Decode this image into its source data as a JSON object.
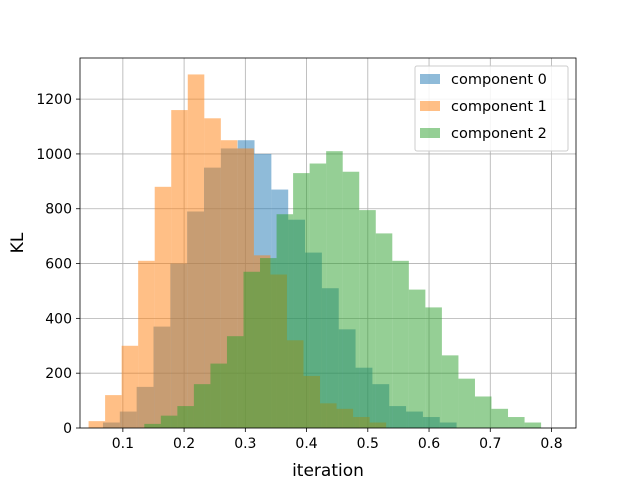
{
  "chart_data": {
    "type": "histogram",
    "xlabel": "iteration",
    "ylabel": "KL",
    "xlim": [
      0.03,
      0.84
    ],
    "ylim": [
      0,
      1350
    ],
    "xticks": [
      0.1,
      0.2,
      0.3,
      0.4,
      0.5,
      0.6,
      0.7,
      0.8
    ],
    "xtick_labels": [
      "0.1",
      "0.2",
      "0.3",
      "0.4",
      "0.5",
      "0.6",
      "0.7",
      "0.8"
    ],
    "yticks": [
      0,
      200,
      400,
      600,
      800,
      1000,
      1200
    ],
    "ytick_labels": [
      "0",
      "200",
      "400",
      "600",
      "800",
      "1000",
      "1200"
    ],
    "grid": true,
    "legend_position": "top-right",
    "series": [
      {
        "name": "component 0",
        "color": "#1f77b4",
        "opacity": 0.5,
        "bins": [
          [
            0.0675,
            0.095,
            20
          ],
          [
            0.095,
            0.1225,
            60
          ],
          [
            0.1225,
            0.15,
            150
          ],
          [
            0.15,
            0.1775,
            370
          ],
          [
            0.1775,
            0.205,
            600
          ],
          [
            0.205,
            0.2325,
            790
          ],
          [
            0.2325,
            0.26,
            950
          ],
          [
            0.26,
            0.2875,
            1020
          ],
          [
            0.2875,
            0.315,
            1050
          ],
          [
            0.315,
            0.3425,
            1000
          ],
          [
            0.3425,
            0.37,
            870
          ],
          [
            0.37,
            0.3975,
            760
          ],
          [
            0.3975,
            0.425,
            640
          ],
          [
            0.425,
            0.4525,
            510
          ],
          [
            0.4525,
            0.48,
            360
          ],
          [
            0.48,
            0.5075,
            220
          ],
          [
            0.5075,
            0.535,
            160
          ],
          [
            0.535,
            0.5625,
            80
          ],
          [
            0.5625,
            0.59,
            60
          ],
          [
            0.59,
            0.6175,
            40
          ],
          [
            0.6175,
            0.645,
            20
          ]
        ]
      },
      {
        "name": "component 1",
        "color": "#ff7f0e",
        "opacity": 0.5,
        "bins": [
          [
            0.044,
            0.071,
            25
          ],
          [
            0.071,
            0.098,
            120
          ],
          [
            0.098,
            0.125,
            300
          ],
          [
            0.125,
            0.152,
            610
          ],
          [
            0.152,
            0.179,
            880
          ],
          [
            0.179,
            0.206,
            1160
          ],
          [
            0.206,
            0.233,
            1290
          ],
          [
            0.233,
            0.26,
            1130
          ],
          [
            0.26,
            0.287,
            1050
          ],
          [
            0.287,
            0.314,
            1020
          ],
          [
            0.314,
            0.341,
            630
          ],
          [
            0.341,
            0.368,
            560
          ],
          [
            0.368,
            0.395,
            320
          ],
          [
            0.395,
            0.422,
            190
          ],
          [
            0.422,
            0.449,
            90
          ],
          [
            0.449,
            0.476,
            70
          ],
          [
            0.476,
            0.503,
            40
          ],
          [
            0.503,
            0.53,
            20
          ]
        ]
      },
      {
        "name": "component 2",
        "color": "#2ca02c",
        "opacity": 0.5,
        "bins": [
          [
            0.135,
            0.162,
            15
          ],
          [
            0.162,
            0.189,
            45
          ],
          [
            0.189,
            0.216,
            80
          ],
          [
            0.216,
            0.243,
            160
          ],
          [
            0.243,
            0.27,
            235
          ],
          [
            0.27,
            0.297,
            335
          ],
          [
            0.297,
            0.324,
            570
          ],
          [
            0.324,
            0.351,
            620
          ],
          [
            0.351,
            0.378,
            780
          ],
          [
            0.378,
            0.405,
            930
          ],
          [
            0.405,
            0.432,
            965
          ],
          [
            0.432,
            0.459,
            1010
          ],
          [
            0.459,
            0.486,
            935
          ],
          [
            0.486,
            0.513,
            795
          ],
          [
            0.513,
            0.54,
            710
          ],
          [
            0.54,
            0.567,
            610
          ],
          [
            0.567,
            0.594,
            505
          ],
          [
            0.594,
            0.621,
            440
          ],
          [
            0.621,
            0.648,
            265
          ],
          [
            0.648,
            0.675,
            180
          ],
          [
            0.675,
            0.702,
            115
          ],
          [
            0.702,
            0.729,
            70
          ],
          [
            0.729,
            0.756,
            40
          ],
          [
            0.756,
            0.783,
            20
          ]
        ]
      }
    ]
  }
}
